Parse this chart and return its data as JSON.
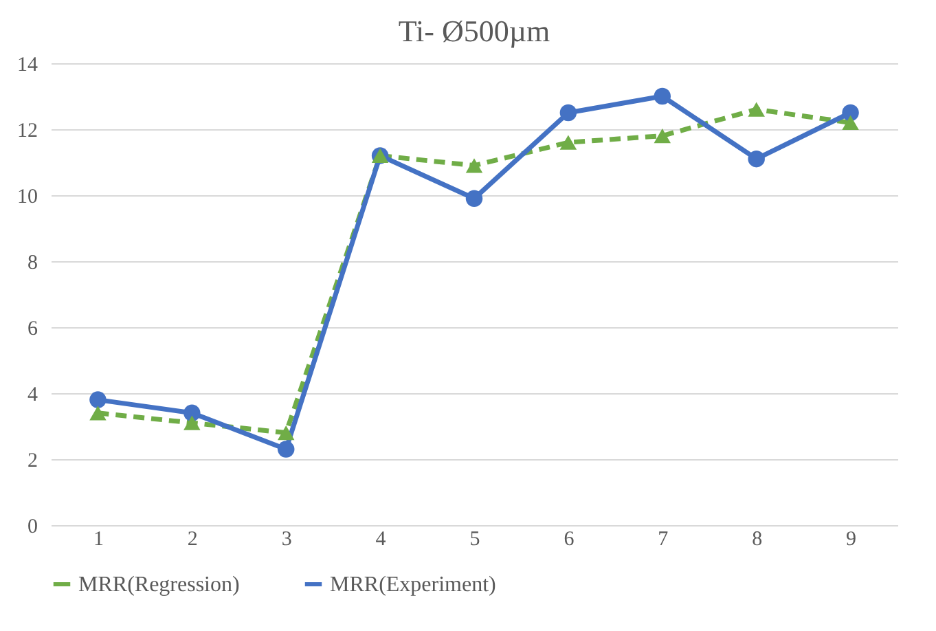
{
  "chart_data": {
    "type": "line",
    "title": "Ti- Ø500µm",
    "categories": [
      "1",
      "2",
      "3",
      "4",
      "5",
      "6",
      "7",
      "8",
      "9"
    ],
    "series": [
      {
        "name": "MRR(Regression)",
        "color": "#70ad47",
        "marker": "triangle",
        "line_style": "dashed",
        "values": [
          3.4,
          3.1,
          2.8,
          11.2,
          10.9,
          11.6,
          11.8,
          12.6,
          12.2
        ]
      },
      {
        "name": "MRR(Experiment)",
        "color": "#4472c4",
        "marker": "circle",
        "line_style": "solid",
        "values": [
          3.8,
          3.4,
          2.3,
          11.2,
          9.9,
          12.5,
          13.0,
          11.1,
          12.5
        ]
      }
    ],
    "ylim": [
      0,
      14
    ],
    "yticks": [
      0,
      2,
      4,
      6,
      8,
      10,
      12,
      14
    ],
    "grid": "y",
    "legend": "bottom"
  }
}
